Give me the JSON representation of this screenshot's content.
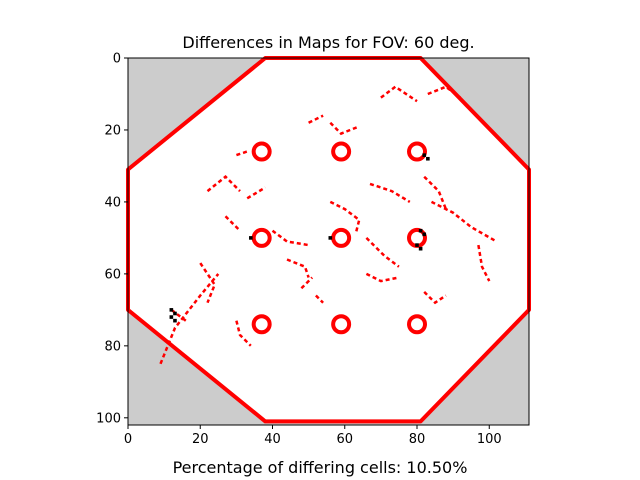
{
  "chart_data": {
    "type": "heatmap",
    "title": "Differences in Maps for FOV: 60 deg.",
    "xlabel": "",
    "ylabel": "",
    "xlim": [
      0,
      111
    ],
    "ylim": [
      102,
      0
    ],
    "x_ticks": [
      0,
      20,
      40,
      60,
      80,
      100
    ],
    "y_ticks": [
      0,
      20,
      40,
      60,
      80,
      100
    ],
    "cell_legend": {
      "background": "#cccccc",
      "free": "#ffffff",
      "different": "#ff0000",
      "overlap": "#000000"
    },
    "octagon_outline": [
      [
        38,
        0
      ],
      [
        81,
        0
      ],
      [
        111,
        31
      ],
      [
        111,
        70
      ],
      [
        81,
        101
      ],
      [
        38,
        101
      ],
      [
        0,
        70
      ],
      [
        0,
        31
      ]
    ],
    "circle_obstacles": [
      {
        "x": 37,
        "y": 26
      },
      {
        "x": 59,
        "y": 26
      },
      {
        "x": 80,
        "y": 26
      },
      {
        "x": 37,
        "y": 50
      },
      {
        "x": 59,
        "y": 50
      },
      {
        "x": 80,
        "y": 50
      },
      {
        "x": 37,
        "y": 74
      },
      {
        "x": 59,
        "y": 74
      },
      {
        "x": 80,
        "y": 74
      }
    ],
    "difference_segments": [
      [
        [
          9,
          85
        ],
        [
          13,
          75
        ],
        [
          20,
          66
        ],
        [
          25,
          60
        ]
      ],
      [
        [
          12,
          70
        ],
        [
          16,
          73
        ]
      ],
      [
        [
          20,
          57
        ],
        [
          24,
          63
        ],
        [
          22,
          68
        ]
      ],
      [
        [
          30,
          73
        ],
        [
          31,
          77
        ],
        [
          34,
          80
        ]
      ],
      [
        [
          22,
          37
        ],
        [
          27,
          33
        ],
        [
          31,
          37
        ]
      ],
      [
        [
          33,
          39
        ],
        [
          38,
          36
        ]
      ],
      [
        [
          40,
          48
        ],
        [
          44,
          51
        ],
        [
          50,
          52
        ]
      ],
      [
        [
          44,
          56
        ],
        [
          49,
          58
        ],
        [
          50,
          61
        ]
      ],
      [
        [
          52,
          66
        ],
        [
          54,
          68
        ]
      ],
      [
        [
          56,
          40
        ],
        [
          60,
          42
        ],
        [
          64,
          45
        ],
        [
          63,
          49
        ]
      ],
      [
        [
          67,
          35
        ],
        [
          73,
          37
        ],
        [
          78,
          40
        ]
      ],
      [
        [
          66,
          50
        ],
        [
          71,
          55
        ],
        [
          75,
          58
        ]
      ],
      [
        [
          84,
          40
        ],
        [
          90,
          43
        ],
        [
          95,
          47
        ],
        [
          102,
          51
        ]
      ],
      [
        [
          97,
          52
        ],
        [
          98,
          58
        ],
        [
          100,
          62
        ]
      ],
      [
        [
          82,
          33
        ],
        [
          86,
          37
        ],
        [
          88,
          42
        ]
      ],
      [
        [
          70,
          11
        ],
        [
          74,
          8
        ],
        [
          80,
          12
        ]
      ],
      [
        [
          83,
          10
        ],
        [
          88,
          8
        ],
        [
          92,
          11
        ]
      ],
      [
        [
          56,
          18
        ],
        [
          59,
          21
        ],
        [
          64,
          19
        ]
      ],
      [
        [
          50,
          18
        ],
        [
          54,
          16
        ]
      ],
      [
        [
          30,
          27
        ],
        [
          33,
          26
        ]
      ],
      [
        [
          82,
          65
        ],
        [
          85,
          68
        ],
        [
          88,
          66
        ]
      ],
      [
        [
          66,
          60
        ],
        [
          70,
          62
        ],
        [
          75,
          61
        ]
      ],
      [
        [
          48,
          64
        ],
        [
          51,
          61
        ]
      ],
      [
        [
          27,
          44
        ],
        [
          31,
          48
        ]
      ]
    ],
    "overlap_cells": [
      [
        12,
        70
      ],
      [
        13,
        71
      ],
      [
        12,
        72
      ],
      [
        13,
        73
      ],
      [
        81,
        48
      ],
      [
        82,
        49
      ],
      [
        80,
        52
      ],
      [
        81,
        53
      ],
      [
        82,
        27
      ],
      [
        83,
        28
      ],
      [
        34,
        50
      ],
      [
        56,
        50
      ]
    ],
    "footer": "Percentage of differing cells: 10.50%"
  }
}
